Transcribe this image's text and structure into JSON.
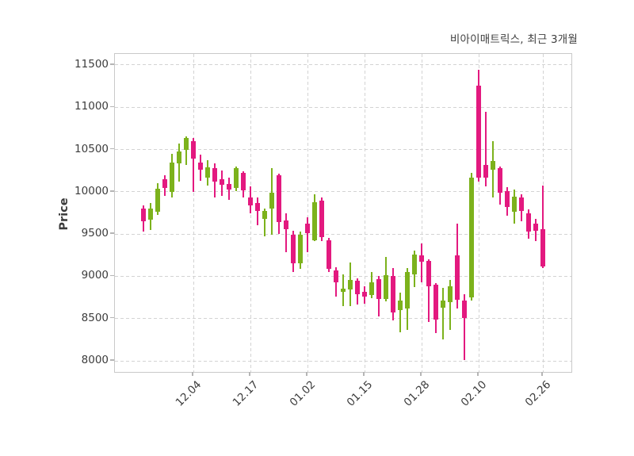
{
  "title": "비아이매트릭스, 최근 3개월",
  "chart_data": {
    "type": "candlestick",
    "title": "비아이매트릭스, 최근 3개월",
    "ylabel": "Price",
    "ylim": [
      7869,
      11631
    ],
    "y_ticks": [
      11500,
      11000,
      10500,
      10000,
      9500,
      9000,
      8500,
      8000
    ],
    "x_tick_labels": [
      "12.04",
      "12.17",
      "01.02",
      "01.15",
      "01.28",
      "02.10",
      "02.26"
    ],
    "x_tick_indices": [
      8,
      16,
      24,
      32,
      40,
      48,
      57
    ],
    "grid": true,
    "legend": "none",
    "up_color": "#7cb21c",
    "down_color": "#e3197f",
    "ohlc_order": [
      "open",
      "high",
      "low",
      "close"
    ],
    "candles": [
      [
        9800,
        9840,
        9530,
        9650
      ],
      [
        9670,
        9870,
        9550,
        9800
      ],
      [
        9760,
        10100,
        9730,
        10040
      ],
      [
        10150,
        10200,
        9950,
        10050
      ],
      [
        10000,
        10450,
        9930,
        10350
      ],
      [
        10340,
        10570,
        10120,
        10480
      ],
      [
        10500,
        10660,
        10320,
        10640
      ],
      [
        10600,
        10640,
        10000,
        10390
      ],
      [
        10350,
        10440,
        10130,
        10260
      ],
      [
        10165,
        10370,
        10070,
        10290
      ],
      [
        10280,
        10340,
        9930,
        10120
      ],
      [
        10150,
        10250,
        9950,
        10080
      ],
      [
        10090,
        10170,
        9900,
        10030
      ],
      [
        10045,
        10300,
        10010,
        10280
      ],
      [
        10220,
        10240,
        9935,
        10015
      ],
      [
        9935,
        10060,
        9745,
        9840
      ],
      [
        9870,
        9935,
        9600,
        9775
      ],
      [
        9680,
        9800,
        9475,
        9775
      ],
      [
        9800,
        10280,
        9490,
        9990
      ],
      [
        10200,
        10210,
        9500,
        9640
      ],
      [
        9665,
        9745,
        9290,
        9555
      ],
      [
        9490,
        9540,
        9050,
        9150
      ],
      [
        9150,
        9525,
        9090,
        9495
      ],
      [
        9620,
        9695,
        9290,
        9510
      ],
      [
        9430,
        9975,
        9420,
        9880
      ],
      [
        9900,
        9930,
        9420,
        9460
      ],
      [
        9430,
        9450,
        9050,
        9090
      ],
      [
        9070,
        9105,
        8760,
        8930
      ],
      [
        8820,
        9020,
        8650,
        8855
      ],
      [
        8840,
        9165,
        8650,
        8960
      ],
      [
        8945,
        8980,
        8670,
        8790
      ],
      [
        8820,
        8885,
        8680,
        8760
      ],
      [
        8775,
        9055,
        8745,
        8930
      ],
      [
        8965,
        9000,
        8525,
        8730
      ],
      [
        8730,
        9230,
        8700,
        9010
      ],
      [
        9000,
        9100,
        8480,
        8570
      ],
      [
        8600,
        8805,
        8340,
        8710
      ],
      [
        8620,
        9100,
        8370,
        9055
      ],
      [
        9025,
        9305,
        8870,
        9260
      ],
      [
        9245,
        9385,
        8930,
        9175
      ],
      [
        9180,
        9200,
        8460,
        8880
      ],
      [
        8900,
        8920,
        8330,
        8490
      ],
      [
        8630,
        8865,
        8250,
        8710
      ],
      [
        8695,
        8960,
        8365,
        8880
      ],
      [
        9245,
        9620,
        8620,
        8725
      ],
      [
        8710,
        8790,
        8010,
        8505
      ],
      [
        8755,
        10220,
        8710,
        10170
      ],
      [
        11260,
        11445,
        10125,
        10170
      ],
      [
        10315,
        10945,
        10060,
        10170
      ],
      [
        10265,
        10595,
        9935,
        10360
      ],
      [
        10280,
        10300,
        9845,
        9985
      ],
      [
        10010,
        10055,
        9715,
        9825
      ],
      [
        9760,
        10025,
        9620,
        9945
      ],
      [
        9930,
        9975,
        9650,
        9775
      ],
      [
        9745,
        9790,
        9445,
        9525
      ],
      [
        9620,
        9680,
        9415,
        9540
      ],
      [
        9555,
        10070,
        9100,
        9120
      ]
    ]
  }
}
